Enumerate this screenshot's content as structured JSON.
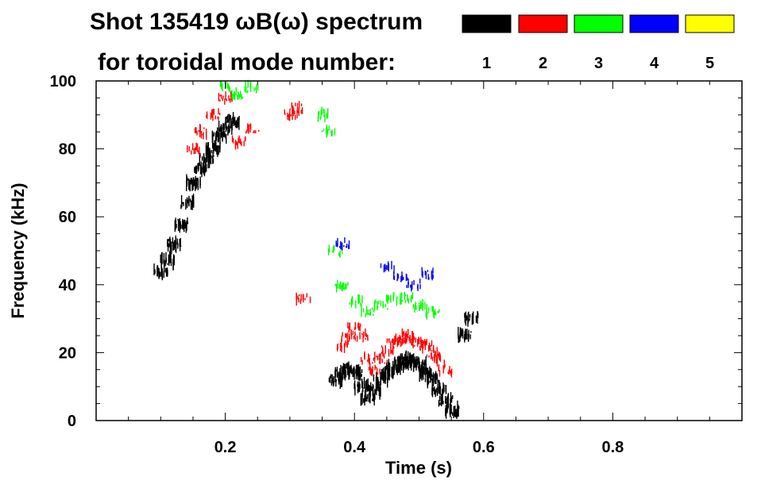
{
  "chart_data": {
    "type": "heatmap",
    "title": "Shot 135419 ωB(ω) spectrum",
    "subtitle": "for toroidal mode number:",
    "xlabel": "Time (s)",
    "ylabel": "Frequency (kHz)",
    "xlim": [
      0.0,
      1.0
    ],
    "ylim": [
      0,
      100
    ],
    "x_ticks": [
      0.2,
      0.4,
      0.6,
      0.8
    ],
    "x_tick_labels": [
      "0.2",
      "0.4",
      "0.6",
      "0.8"
    ],
    "y_ticks": [
      0,
      20,
      40,
      60,
      80,
      100
    ],
    "y_tick_labels": [
      "0",
      "20",
      "40",
      "60",
      "80",
      "100"
    ],
    "legend": {
      "placement": "top-right",
      "entries": [
        {
          "label": "1",
          "color": "#000000"
        },
        {
          "label": "2",
          "color": "#ff0000"
        },
        {
          "label": "3",
          "color": "#00ff00"
        },
        {
          "label": "4",
          "color": "#0000ff"
        },
        {
          "label": "5",
          "color": "#ffff00"
        }
      ]
    },
    "series": [
      {
        "mode": "1",
        "color": "#000000",
        "points": [
          [
            0.1,
            44
          ],
          [
            0.11,
            47
          ],
          [
            0.12,
            52
          ],
          [
            0.13,
            58
          ],
          [
            0.14,
            64
          ],
          [
            0.15,
            70
          ],
          [
            0.16,
            74
          ],
          [
            0.17,
            77
          ],
          [
            0.18,
            80
          ],
          [
            0.19,
            84
          ],
          [
            0.2,
            86
          ],
          [
            0.21,
            88
          ],
          [
            0.37,
            12
          ],
          [
            0.38,
            14
          ],
          [
            0.39,
            15
          ],
          [
            0.4,
            14
          ],
          [
            0.41,
            10
          ],
          [
            0.42,
            7
          ],
          [
            0.43,
            9
          ],
          [
            0.44,
            12
          ],
          [
            0.45,
            14
          ],
          [
            0.46,
            16
          ],
          [
            0.47,
            17
          ],
          [
            0.48,
            18
          ],
          [
            0.49,
            17
          ],
          [
            0.5,
            16
          ],
          [
            0.51,
            14
          ],
          [
            0.52,
            12
          ],
          [
            0.53,
            9
          ],
          [
            0.54,
            6
          ],
          [
            0.55,
            3
          ],
          [
            0.57,
            25
          ],
          [
            0.58,
            30
          ]
        ]
      },
      {
        "mode": "2",
        "color": "#ff0000",
        "points": [
          [
            0.15,
            80
          ],
          [
            0.16,
            85
          ],
          [
            0.18,
            90
          ],
          [
            0.2,
            95
          ],
          [
            0.22,
            82
          ],
          [
            0.24,
            86
          ],
          [
            0.3,
            90
          ],
          [
            0.31,
            92
          ],
          [
            0.32,
            36
          ],
          [
            0.38,
            22
          ],
          [
            0.39,
            25
          ],
          [
            0.4,
            27
          ],
          [
            0.41,
            25
          ],
          [
            0.42,
            18
          ],
          [
            0.43,
            15
          ],
          [
            0.44,
            18
          ],
          [
            0.45,
            21
          ],
          [
            0.46,
            23
          ],
          [
            0.47,
            24
          ],
          [
            0.48,
            25
          ],
          [
            0.49,
            24
          ],
          [
            0.5,
            23
          ],
          [
            0.51,
            22
          ],
          [
            0.52,
            20
          ],
          [
            0.53,
            18
          ],
          [
            0.54,
            15
          ]
        ]
      },
      {
        "mode": "3",
        "color": "#00ff00",
        "points": [
          [
            0.2,
            98
          ],
          [
            0.22,
            96
          ],
          [
            0.24,
            98
          ],
          [
            0.35,
            90
          ],
          [
            0.36,
            85
          ],
          [
            0.37,
            50
          ],
          [
            0.38,
            40
          ],
          [
            0.4,
            35
          ],
          [
            0.42,
            32
          ],
          [
            0.44,
            34
          ],
          [
            0.46,
            36
          ],
          [
            0.48,
            36
          ],
          [
            0.5,
            34
          ],
          [
            0.52,
            32
          ]
        ]
      },
      {
        "mode": "4",
        "color": "#0000ff",
        "points": [
          [
            0.38,
            52
          ],
          [
            0.45,
            45
          ],
          [
            0.47,
            42
          ],
          [
            0.49,
            40
          ],
          [
            0.51,
            43
          ]
        ]
      },
      {
        "mode": "5",
        "color": "#ffff00",
        "points": []
      }
    ]
  }
}
